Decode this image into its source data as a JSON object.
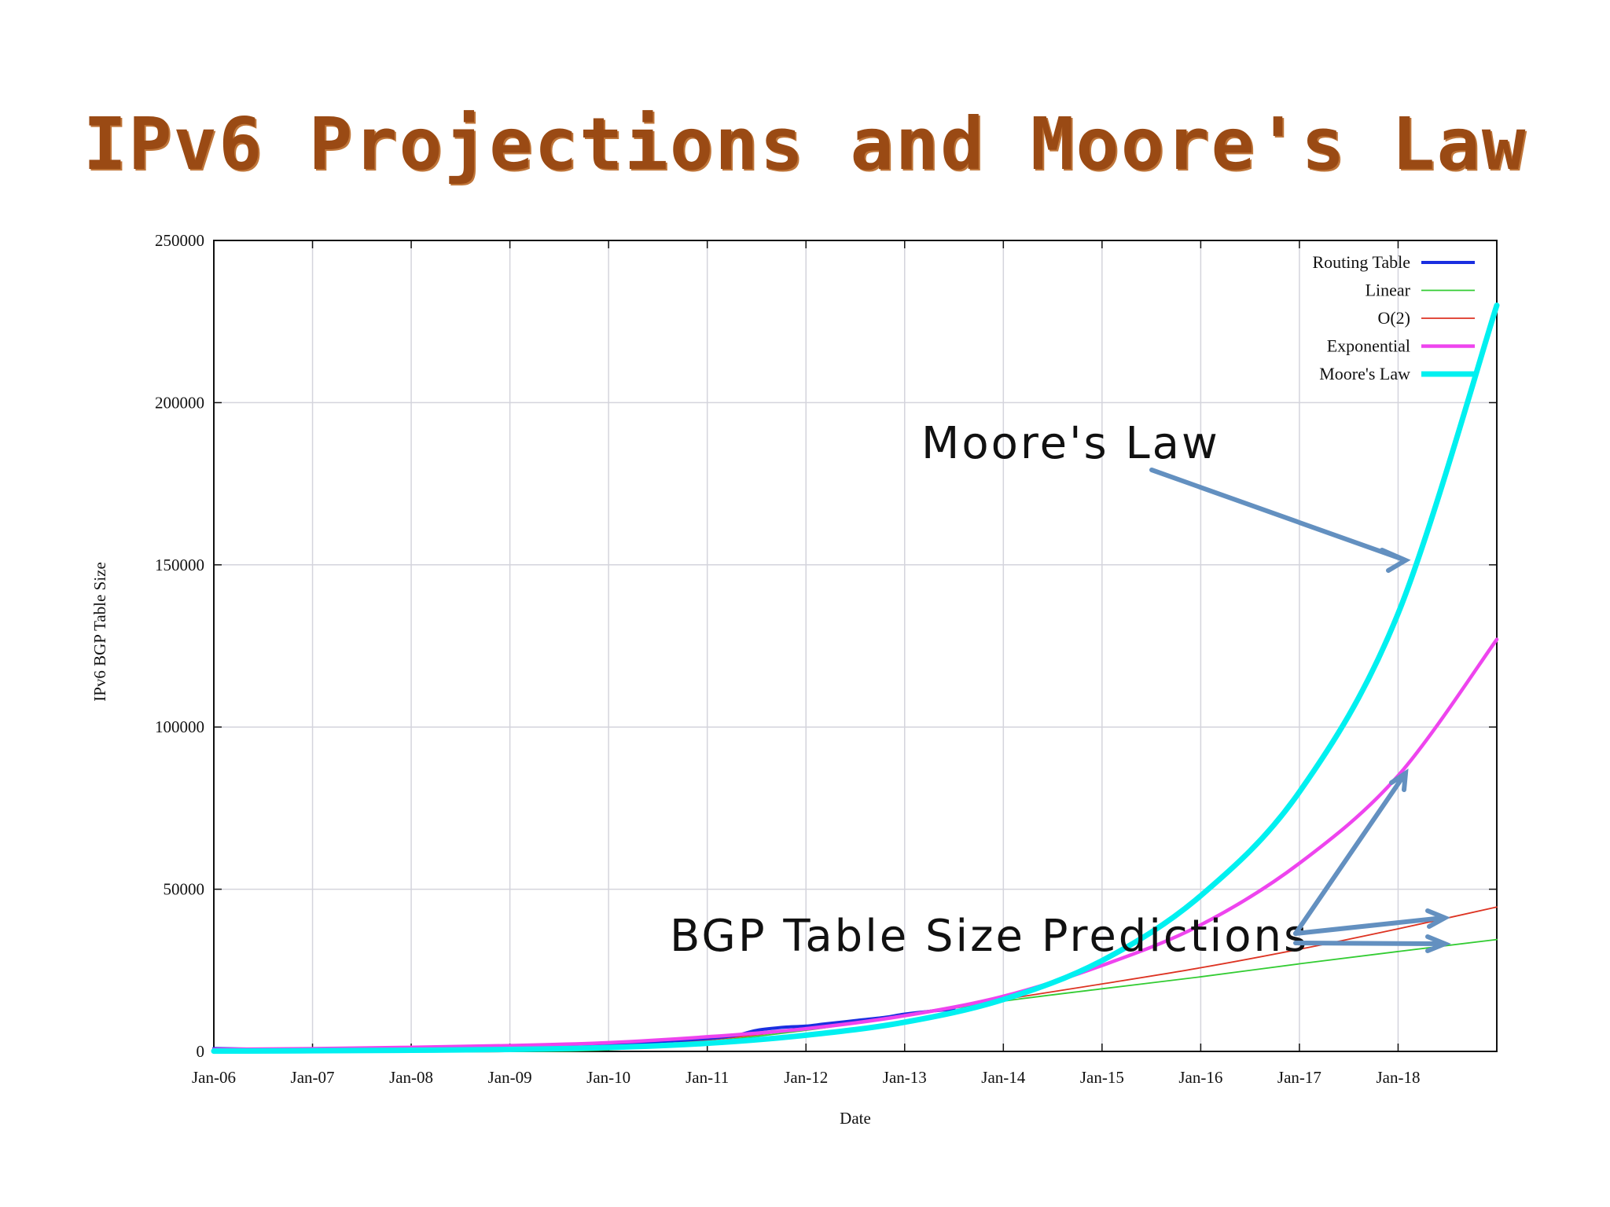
{
  "slide": {
    "title": "IPv6 Projections and Moore's Law"
  },
  "annotations": {
    "moores_law": "Moore's Law",
    "predictions": "BGP Table Size Predictions",
    "arrow_color": "#6390c0"
  },
  "chart_data": {
    "type": "line",
    "xlabel": "Date",
    "ylabel": "IPv6 BGP Table Size",
    "x_ticks": [
      "Jan-06",
      "Jan-07",
      "Jan-08",
      "Jan-09",
      "Jan-10",
      "Jan-11",
      "Jan-12",
      "Jan-13",
      "Jan-14",
      "Jan-15",
      "Jan-16",
      "Jan-17",
      "Jan-18"
    ],
    "xlim": [
      "Jan-06",
      "Jan-19"
    ],
    "ylim": [
      0,
      250000
    ],
    "y_ticks": [
      0,
      50000,
      100000,
      150000,
      200000,
      250000
    ],
    "grid": true,
    "legend_position": "top-right",
    "series": [
      {
        "name": "Routing Table",
        "color": "#1a2ee0",
        "x": [
          2006.0,
          2006.5,
          2007.0,
          2007.5,
          2008.0,
          2008.5,
          2009.0,
          2009.5,
          2010.0,
          2010.5,
          2011.0,
          2011.3,
          2011.5,
          2011.8,
          2012.0,
          2012.2,
          2012.5,
          2012.8,
          2013.0,
          2013.3,
          2013.5
        ],
        "y": [
          900,
          700,
          800,
          900,
          1100,
          1300,
          1500,
          1800,
          2300,
          3000,
          4000,
          5000,
          6500,
          7500,
          7800,
          8500,
          9500,
          10500,
          11500,
          12500,
          13000
        ]
      },
      {
        "name": "Linear",
        "color": "#33cc33",
        "x": [
          2006,
          2007,
          2008,
          2009,
          2010,
          2011,
          2012,
          2013,
          2014,
          2015,
          2016,
          2017,
          2018,
          2019
        ],
        "y": [
          -600,
          -500,
          -400,
          -300,
          500,
          3000,
          6500,
          11000,
          15500,
          19300,
          23000,
          27000,
          30800,
          34500
        ]
      },
      {
        "name": "O(2)",
        "color": "#dd3322",
        "x": [
          2006,
          2007,
          2008,
          2009,
          2010,
          2011,
          2012,
          2013,
          2014,
          2015,
          2016,
          2017,
          2018,
          2019
        ],
        "y": [
          0,
          0,
          0,
          0,
          1200,
          3500,
          7000,
          11500,
          16000,
          20800,
          25800,
          31500,
          37800,
          44500
        ]
      },
      {
        "name": "Exponential",
        "color": "#ee44ee",
        "x": [
          2006,
          2007,
          2008,
          2009,
          2010,
          2011,
          2012,
          2013,
          2014,
          2015,
          2016,
          2017,
          2018,
          2019
        ],
        "y": [
          600,
          850,
          1250,
          1800,
          2700,
          4500,
          7000,
          11000,
          17000,
          26500,
          39000,
          58000,
          85000,
          127000
        ]
      },
      {
        "name": "Moore's Law",
        "color": "#00f0f0",
        "x": [
          2006,
          2007,
          2008,
          2009,
          2010,
          2011,
          2012,
          2013,
          2014,
          2015,
          2016,
          2017,
          2018,
          2019
        ],
        "y": [
          100,
          200,
          350,
          600,
          1200,
          2500,
          5000,
          9000,
          16000,
          28000,
          48000,
          80000,
          135000,
          230000
        ]
      }
    ]
  }
}
